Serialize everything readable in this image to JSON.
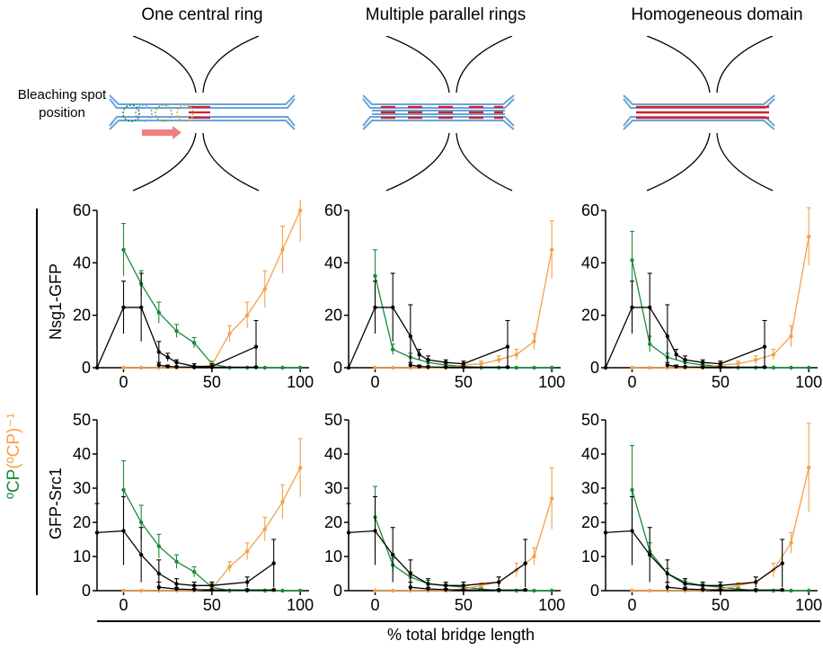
{
  "columns": [
    {
      "title": "One central ring",
      "diagram": "central"
    },
    {
      "title": "Multiple parallel rings",
      "diagram": "parallel"
    },
    {
      "title": "Homogeneous domain",
      "diagram": "homogeneous"
    }
  ],
  "diagram_label": "Bleaching spot position",
  "rows": [
    "Nsg1-GFP",
    "GFP-Src1"
  ],
  "y_axis_label": {
    "part1": "ºCP ",
    "part2": "(ºCP)⁻¹"
  },
  "x_axis_label": "% total bridge length",
  "colors": {
    "green": "#1a8a3a",
    "orange": "#f5a04a",
    "black": "#000000",
    "blue": "#6aa3d6",
    "red": "#d8202a"
  },
  "chart_data": [
    {
      "type": "line",
      "row": "Nsg1-GFP",
      "column": "One central ring",
      "xlim": [
        -15,
        105
      ],
      "ylim": [
        0,
        60
      ],
      "xticks": [
        0,
        50,
        100
      ],
      "yticks": [
        0,
        20,
        40,
        60
      ],
      "series": [
        {
          "color": "green",
          "x": [
            0,
            10,
            20,
            30,
            40,
            50,
            60,
            70,
            80,
            90,
            100
          ],
          "y": [
            45,
            32,
            21,
            14,
            9.5,
            1.5,
            0,
            0,
            0,
            0,
            0
          ],
          "err": [
            10,
            5,
            4,
            2.5,
            2,
            1,
            0,
            0,
            0,
            0,
            0
          ]
        },
        {
          "color": "orange",
          "x": [
            0,
            10,
            20,
            30,
            40,
            50,
            60,
            70,
            80,
            90,
            100
          ],
          "y": [
            0,
            0,
            0,
            0,
            0,
            1,
            13,
            20,
            30,
            45,
            60
          ],
          "err": [
            0,
            0,
            0,
            0,
            0,
            1,
            3,
            5,
            7,
            9,
            12
          ]
        },
        {
          "color": "black",
          "x": [
            -15,
            0,
            10,
            20,
            25,
            30,
            40,
            50,
            75
          ],
          "y": [
            0,
            23,
            23,
            6,
            4,
            2,
            0.5,
            0.5,
            8
          ],
          "err": [
            0,
            10,
            13,
            4,
            1.5,
            1,
            1,
            1,
            10
          ]
        },
        {
          "color": "black",
          "x": [
            20,
            25,
            30,
            40,
            50,
            75
          ],
          "y": [
            1,
            0.5,
            0.3,
            0.2,
            0.2,
            0.2
          ],
          "err": [
            1,
            0.5,
            0.3,
            0.2,
            0.2,
            0.2
          ]
        }
      ]
    },
    {
      "type": "line",
      "row": "Nsg1-GFP",
      "column": "Multiple parallel rings",
      "xlim": [
        -15,
        105
      ],
      "ylim": [
        0,
        60
      ],
      "xticks": [
        0,
        50,
        100
      ],
      "yticks": [
        0,
        20,
        40,
        60
      ],
      "series": [
        {
          "color": "green",
          "x": [
            0,
            10,
            20,
            30,
            40,
            50,
            60,
            70,
            80,
            90,
            100
          ],
          "y": [
            35,
            7,
            4,
            2,
            1,
            0.5,
            0,
            0,
            0,
            0,
            0
          ],
          "err": [
            10,
            2,
            1.5,
            1,
            0.8,
            0.5,
            0,
            0,
            0,
            0,
            0
          ]
        },
        {
          "color": "orange",
          "x": [
            0,
            10,
            20,
            30,
            40,
            50,
            60,
            70,
            80,
            90,
            100
          ],
          "y": [
            0,
            0,
            0,
            0,
            0,
            1,
            1.5,
            3,
            5,
            10,
            45
          ],
          "err": [
            0,
            0,
            0,
            0,
            0,
            0.5,
            1,
            1.5,
            2,
            3,
            11
          ]
        },
        {
          "color": "black",
          "x": [
            -15,
            0,
            10,
            20,
            25,
            30,
            40,
            50,
            75
          ],
          "y": [
            0,
            23,
            23,
            12,
            5,
            3,
            2,
            1.5,
            8
          ],
          "err": [
            0,
            10,
            13,
            12,
            2,
            1.5,
            1,
            1,
            10
          ]
        },
        {
          "color": "black",
          "x": [
            20,
            25,
            30,
            40,
            50,
            75
          ],
          "y": [
            1,
            0.5,
            0.3,
            0.2,
            0.2,
            0.2
          ],
          "err": [
            1,
            0.5,
            0.3,
            0.2,
            0.2,
            0.2
          ]
        }
      ]
    },
    {
      "type": "line",
      "row": "Nsg1-GFP",
      "column": "Homogeneous domain",
      "xlim": [
        -15,
        105
      ],
      "ylim": [
        0,
        60
      ],
      "xticks": [
        0,
        50,
        100
      ],
      "yticks": [
        0,
        20,
        40,
        60
      ],
      "series": [
        {
          "color": "green",
          "x": [
            0,
            10,
            20,
            30,
            40,
            50,
            60,
            70,
            80,
            90,
            100
          ],
          "y": [
            41,
            9,
            4,
            2,
            1,
            0.5,
            0,
            0,
            0,
            0,
            0
          ],
          "err": [
            11,
            3,
            1.5,
            1,
            0.8,
            0.5,
            0,
            0,
            0,
            0,
            0
          ]
        },
        {
          "color": "orange",
          "x": [
            0,
            10,
            20,
            30,
            40,
            50,
            60,
            70,
            80,
            90,
            100
          ],
          "y": [
            0,
            0,
            0,
            0,
            0,
            1,
            1.5,
            3,
            5,
            12,
            50
          ],
          "err": [
            0,
            0,
            0,
            0,
            0,
            0.5,
            1,
            1.5,
            2,
            4,
            11
          ]
        },
        {
          "color": "black",
          "x": [
            -15,
            0,
            10,
            20,
            25,
            30,
            40,
            50,
            75
          ],
          "y": [
            0,
            23,
            23,
            12,
            5,
            3,
            2,
            1.5,
            8
          ],
          "err": [
            0,
            10,
            13,
            12,
            2,
            1.5,
            1,
            1,
            10
          ]
        },
        {
          "color": "black",
          "x": [
            20,
            25,
            30,
            40,
            50,
            75
          ],
          "y": [
            1,
            0.5,
            0.3,
            0.2,
            0.2,
            0.2
          ],
          "err": [
            1,
            0.5,
            0.3,
            0.2,
            0.2,
            0.2
          ]
        }
      ]
    },
    {
      "type": "line",
      "row": "GFP-Src1",
      "column": "One central ring",
      "xlim": [
        -15,
        105
      ],
      "ylim": [
        0,
        50
      ],
      "xticks": [
        0,
        50,
        100
      ],
      "yticks": [
        0,
        10,
        20,
        30,
        40,
        50
      ],
      "series": [
        {
          "color": "green",
          "x": [
            0,
            10,
            20,
            30,
            40,
            50,
            60,
            70,
            80,
            90,
            100
          ],
          "y": [
            29.5,
            20,
            13,
            8.5,
            5.5,
            1,
            0,
            0,
            0,
            0,
            0
          ],
          "err": [
            8.5,
            5,
            3.5,
            2,
            1.5,
            1,
            0,
            0,
            0,
            0,
            0
          ]
        },
        {
          "color": "orange",
          "x": [
            0,
            10,
            20,
            30,
            40,
            50,
            60,
            70,
            80,
            90,
            100
          ],
          "y": [
            0,
            0,
            0,
            0,
            0,
            0.5,
            7,
            11.5,
            18,
            26,
            36
          ],
          "err": [
            0,
            0,
            0,
            0,
            0,
            0.5,
            1.5,
            2.5,
            3.5,
            5,
            8.5
          ]
        },
        {
          "color": "black",
          "x": [
            -15,
            0,
            10,
            20,
            30,
            40,
            50,
            70,
            85
          ],
          "y": [
            17,
            17.5,
            10.5,
            5,
            2,
            1.5,
            1.5,
            2.5,
            8
          ],
          "err": [
            8.5,
            10,
            8,
            4,
            1.5,
            1,
            1,
            1.5,
            7
          ]
        },
        {
          "color": "black",
          "x": [
            20,
            30,
            40,
            50,
            70,
            85
          ],
          "y": [
            1,
            0.5,
            0.3,
            0.2,
            0.2,
            0.2
          ],
          "err": [
            1.5,
            0.5,
            0.3,
            0.2,
            0.2,
            0.2
          ]
        }
      ]
    },
    {
      "type": "line",
      "row": "GFP-Src1",
      "column": "Multiple parallel rings",
      "xlim": [
        -15,
        105
      ],
      "ylim": [
        0,
        50
      ],
      "xticks": [
        0,
        50,
        100
      ],
      "yticks": [
        0,
        10,
        20,
        30,
        40,
        50
      ],
      "series": [
        {
          "color": "green",
          "x": [
            0,
            10,
            20,
            30,
            40,
            50,
            60,
            70,
            80,
            90,
            100
          ],
          "y": [
            21.5,
            7.5,
            4,
            2,
            1.5,
            1,
            0.5,
            0,
            0,
            0,
            0
          ],
          "err": [
            9,
            2,
            1.5,
            1,
            0.5,
            0.5,
            0.3,
            0,
            0,
            0,
            0
          ]
        },
        {
          "color": "orange",
          "x": [
            0,
            10,
            20,
            30,
            40,
            50,
            60,
            70,
            80,
            90,
            100
          ],
          "y": [
            0,
            0,
            0,
            0,
            0,
            0.5,
            1.5,
            2.5,
            6,
            10,
            27
          ],
          "err": [
            0,
            0,
            0,
            0,
            0,
            0.3,
            0.8,
            1.5,
            2,
            2.5,
            9
          ]
        },
        {
          "color": "black",
          "x": [
            -15,
            0,
            10,
            20,
            30,
            40,
            50,
            70,
            85
          ],
          "y": [
            17,
            17.5,
            10.5,
            5,
            2,
            1.5,
            1.5,
            2.5,
            8
          ],
          "err": [
            8.5,
            10,
            8,
            4,
            1.5,
            1,
            1,
            1.5,
            7
          ]
        },
        {
          "color": "black",
          "x": [
            20,
            30,
            40,
            50,
            70,
            85
          ],
          "y": [
            1,
            0.5,
            0.3,
            0.2,
            0.2,
            0.2
          ],
          "err": [
            1.5,
            0.5,
            0.3,
            0.2,
            0.2,
            0.2
          ]
        }
      ]
    },
    {
      "type": "line",
      "row": "GFP-Src1",
      "column": "Homogeneous domain",
      "xlim": [
        -15,
        105
      ],
      "ylim": [
        0,
        50
      ],
      "xticks": [
        0,
        50,
        100
      ],
      "yticks": [
        0,
        10,
        20,
        30,
        40,
        50
      ],
      "series": [
        {
          "color": "green",
          "x": [
            0,
            10,
            20,
            30,
            40,
            50,
            60,
            70,
            80,
            90,
            100
          ],
          "y": [
            29.5,
            11.5,
            5,
            2.5,
            1.5,
            1,
            0.5,
            0,
            0,
            0,
            0
          ],
          "err": [
            13,
            2.5,
            1.5,
            1,
            0.5,
            0.5,
            0.3,
            0,
            0,
            0,
            0
          ]
        },
        {
          "color": "orange",
          "x": [
            0,
            10,
            20,
            30,
            40,
            50,
            60,
            70,
            80,
            90,
            100
          ],
          "y": [
            0,
            0,
            0,
            0,
            0,
            0.5,
            1.5,
            2.5,
            6,
            14,
            36
          ],
          "err": [
            0,
            0,
            0,
            0,
            0,
            0.3,
            0.8,
            1.5,
            2,
            3,
            13
          ]
        },
        {
          "color": "black",
          "x": [
            -15,
            0,
            10,
            20,
            30,
            40,
            50,
            70,
            85
          ],
          "y": [
            17,
            17.5,
            10.5,
            5,
            2,
            1.5,
            1.5,
            2.5,
            8
          ],
          "err": [
            8.5,
            10,
            8,
            4,
            1.5,
            1,
            1,
            1.5,
            7
          ]
        },
        {
          "color": "black",
          "x": [
            20,
            30,
            40,
            50,
            70,
            85
          ],
          "y": [
            1,
            0.5,
            0.3,
            0.2,
            0.2,
            0.2
          ],
          "err": [
            1.5,
            0.5,
            0.3,
            0.2,
            0.2,
            0.2
          ]
        }
      ]
    }
  ]
}
